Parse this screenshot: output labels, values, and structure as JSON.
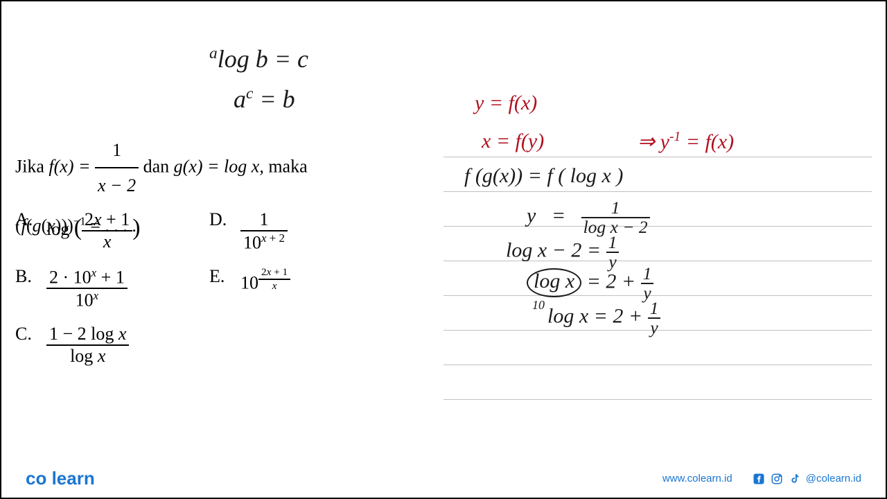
{
  "colors": {
    "red_ink": "#b01020",
    "black_ink": "#1a1a1a",
    "brand_blue": "#1976d2",
    "rule_line": "#c0c0c0",
    "bg": "#ffffff"
  },
  "handwriting_top": {
    "line1_html": "<sup>a</sup>log b = c",
    "line2_html": "a<sup>c</sup> = b"
  },
  "problem": {
    "prompt_prefix": "Jika ",
    "fx_label": "f(x) = ",
    "fx_frac_top": "1",
    "fx_frac_bot": "x − 2",
    "middle": " dan ",
    "gx": "g(x) = log x,",
    "suffix": " maka",
    "line2_html": "(<i>f</i>(<i>g</i>(<i>x</i>)))<sup>−1</sup> = . . . ."
  },
  "options": {
    "A": {
      "label": "A.",
      "html": "log <span style='font-size:1.3em'>(</span><span class='frac'><span class='frac-top'>2<i>x</i> + 1</span><span class='frac-bot'><i>x</i></span></span><span style='font-size:1.3em'>)</span>"
    },
    "B": {
      "label": "B.",
      "html": "<span class='frac'><span class='frac-top'>2 · 10<sup><i>x</i></sup> + 1</span><span class='frac-bot'>10<sup><i>x</i></sup></span></span>"
    },
    "C": {
      "label": "C.",
      "html": "<span class='frac'><span class='frac-top'>1 − 2 log <i>x</i></span><span class='frac-bot'>log <i>x</i></span></span>"
    },
    "D": {
      "label": "D.",
      "html": "<span class='frac'><span class='frac-top'>1</span><span class='frac-bot'>10<sup><i>x</i> + 2</sup></span></span>"
    },
    "E": {
      "label": "E.",
      "html": "10<sup><span class='frac' style='font-size:0.9em'><span class='frac-top'>2<i>x</i> + 1</span><span class='frac-bot'><i>x</i></span></span></sup>"
    }
  },
  "work": {
    "l1": "y = f(x)",
    "l2a": "x = f(y)",
    "l2b": "⇒   y<sup>-1</sup> = f(x)",
    "l3": "f (g(x)) = f ( log x )",
    "l4_lhs": "y",
    "l4_eq": "=",
    "l4_rhs_top": "1",
    "l4_rhs_bot": "log x − 2",
    "l5": "log x − 2  =  <span class='hw-frac'><span class='hw-frac-top'>1</span><span class='hw-frac-bot'>y</span></span>",
    "l6": "<span class='circled'>log x</span> = 2 + <span class='hw-frac'><span class='hw-frac-top'>1</span><span class='hw-frac-bot'>y</span></span>",
    "l7_pre": "10",
    "l7": "log x  =  2 + <span class='hw-frac'><span class='hw-frac-top'>1</span><span class='hw-frac-bot'>y</span></span>"
  },
  "footer": {
    "logo": "co learn",
    "website": "www.colearn.id",
    "handle": "@colearn.id"
  }
}
